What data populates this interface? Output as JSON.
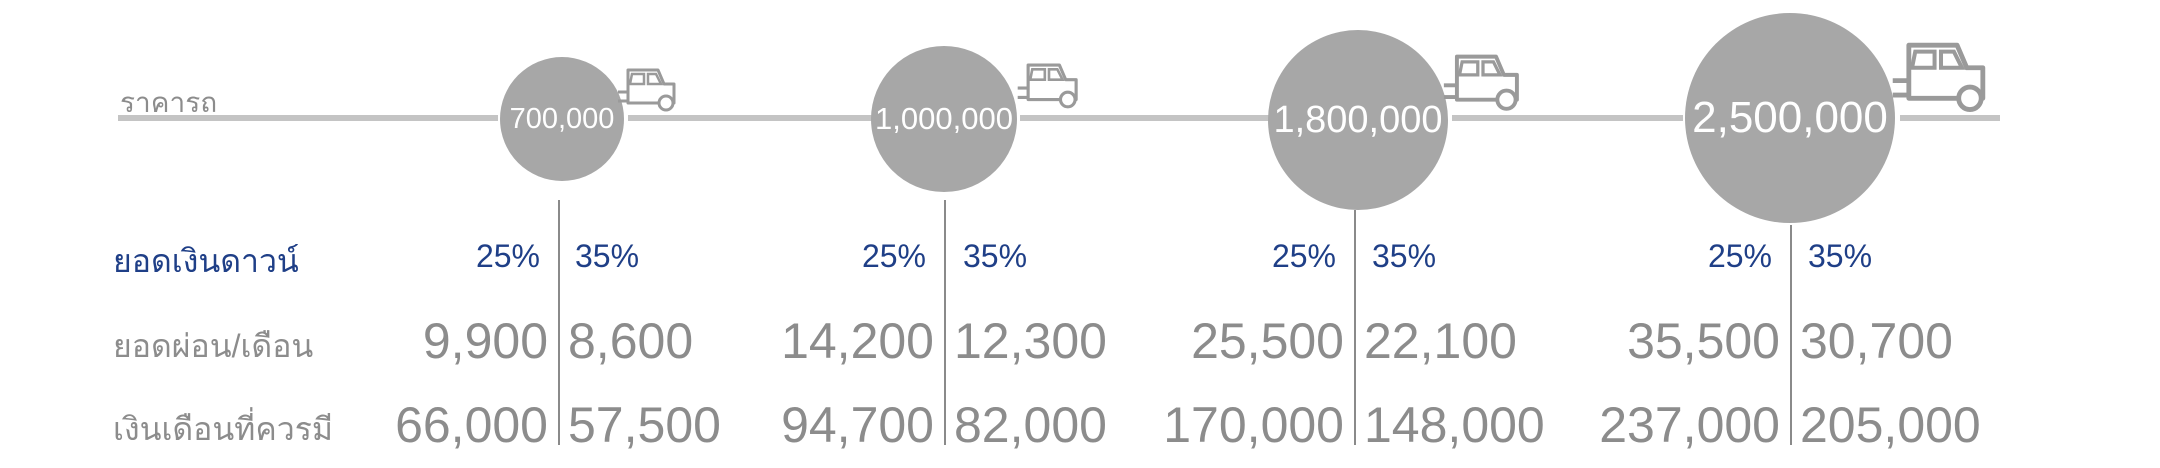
{
  "row_labels": {
    "car_price": "ราคารถ",
    "down_payment": "ยอดเงินดาวน์",
    "monthly_payment": "ยอดผ่อน/เดือน",
    "required_salary": "เงินเดือนที่ควรมี"
  },
  "tiers": [
    {
      "price": "700,000",
      "down_left": "25%",
      "down_right": "35%",
      "pay_left": "9,900",
      "pay_right": "8,600",
      "salary_left": "66,000",
      "salary_right": "57,500"
    },
    {
      "price": "1,000,000",
      "down_left": "25%",
      "down_right": "35%",
      "pay_left": "14,200",
      "pay_right": "12,300",
      "salary_left": "94,700",
      "salary_right": "82,000"
    },
    {
      "price": "1,800,000",
      "down_left": "25%",
      "down_right": "35%",
      "pay_left": "25,500",
      "pay_right": "22,100",
      "salary_left": "170,000",
      "salary_right": "148,000"
    },
    {
      "price": "2,500,000",
      "down_left": "25%",
      "down_right": "35%",
      "pay_left": "35,500",
      "pay_right": "30,700",
      "salary_left": "237,000",
      "salary_right": "205,000"
    }
  ],
  "icons": [
    "car-icon"
  ],
  "colors": {
    "bubble": "#a7a7a7",
    "accent_blue": "#1f3f87",
    "text_gray": "#8c8c8c",
    "line_gray": "#c4c4c4"
  }
}
